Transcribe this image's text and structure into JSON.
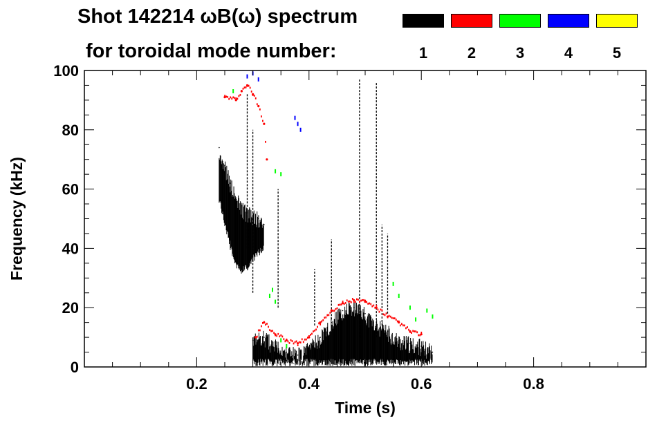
{
  "chart_data": {
    "type": "heatmap",
    "title_line1": "Shot 142214 ωB(ω) spectrum",
    "title_line2": "for toroidal mode number:",
    "xlabel": "Time (s)",
    "ylabel": "Frequency (kHz)",
    "xlim": [
      0.0,
      1.0
    ],
    "ylim": [
      0,
      100
    ],
    "x_ticks": [
      0.2,
      0.4,
      0.6,
      0.8
    ],
    "x_tick_labels": [
      "0.2",
      "0.4",
      "0.6",
      "0.8"
    ],
    "y_ticks": [
      0,
      20,
      40,
      60,
      80,
      100
    ],
    "y_tick_labels": [
      "0",
      "20",
      "40",
      "60",
      "80",
      "100"
    ],
    "legend": [
      {
        "mode": "1",
        "color": "#000000"
      },
      {
        "mode": "2",
        "color": "#ff0000"
      },
      {
        "mode": "3",
        "color": "#00ff00"
      },
      {
        "mode": "4",
        "color": "#0000ff"
      },
      {
        "mode": "5",
        "color": "#ffff00"
      }
    ],
    "series": [
      {
        "name": "n=1 low-frequency band",
        "mode": "1",
        "kind": "band",
        "points": [
          [
            0.3,
            1,
            9
          ],
          [
            0.32,
            1,
            10
          ],
          [
            0.34,
            1,
            7
          ],
          [
            0.36,
            1,
            5
          ],
          [
            0.38,
            1,
            4
          ],
          [
            0.4,
            1,
            6
          ],
          [
            0.42,
            1,
            10
          ],
          [
            0.44,
            1,
            15
          ],
          [
            0.46,
            1,
            19
          ],
          [
            0.48,
            1,
            20
          ],
          [
            0.5,
            1,
            18
          ],
          [
            0.52,
            1,
            14
          ],
          [
            0.54,
            1,
            12
          ],
          [
            0.56,
            1,
            9
          ],
          [
            0.58,
            1,
            8
          ],
          [
            0.6,
            1,
            7
          ],
          [
            0.62,
            1,
            5
          ]
        ]
      },
      {
        "name": "n=1 descending chirp band",
        "mode": "1",
        "kind": "band",
        "points": [
          [
            0.24,
            56,
            74
          ],
          [
            0.25,
            48,
            68
          ],
          [
            0.26,
            40,
            62
          ],
          [
            0.27,
            34,
            57
          ],
          [
            0.28,
            32,
            54
          ],
          [
            0.29,
            33,
            52
          ],
          [
            0.3,
            36,
            51
          ],
          [
            0.31,
            38,
            50
          ],
          [
            0.32,
            40,
            48
          ]
        ]
      },
      {
        "name": "n=1 vertical bursts",
        "mode": "1",
        "kind": "spikes",
        "points": [
          [
            0.29,
            40,
            92
          ],
          [
            0.3,
            25,
            80
          ],
          [
            0.345,
            20,
            60
          ],
          [
            0.41,
            14,
            33
          ],
          [
            0.44,
            16,
            43
          ],
          [
            0.49,
            10,
            97
          ],
          [
            0.52,
            10,
            96
          ],
          [
            0.53,
            14,
            48
          ],
          [
            0.54,
            18,
            45
          ]
        ]
      },
      {
        "name": "n=2 frequency trace",
        "mode": "2",
        "kind": "line",
        "points": [
          [
            0.305,
            10
          ],
          [
            0.32,
            15
          ],
          [
            0.34,
            11
          ],
          [
            0.36,
            9
          ],
          [
            0.38,
            8
          ],
          [
            0.4,
            10
          ],
          [
            0.42,
            15
          ],
          [
            0.44,
            19
          ],
          [
            0.46,
            21.5
          ],
          [
            0.48,
            22.5
          ],
          [
            0.5,
            22
          ],
          [
            0.52,
            20
          ],
          [
            0.54,
            17
          ],
          [
            0.56,
            15
          ],
          [
            0.58,
            12
          ],
          [
            0.6,
            11
          ]
        ]
      },
      {
        "name": "n=2 high-frequency trace",
        "mode": "2",
        "kind": "line",
        "points": [
          [
            0.25,
            91
          ],
          [
            0.27,
            90
          ],
          [
            0.28,
            93
          ],
          [
            0.29,
            95
          ],
          [
            0.3,
            92
          ],
          [
            0.31,
            88
          ],
          [
            0.32,
            82
          ],
          [
            0.325,
            70
          ]
        ]
      },
      {
        "name": "n=3 fragments",
        "mode": "3",
        "kind": "points",
        "points": [
          [
            0.265,
            93
          ],
          [
            0.33,
            24
          ],
          [
            0.335,
            26
          ],
          [
            0.34,
            22
          ],
          [
            0.35,
            9
          ],
          [
            0.36,
            7
          ],
          [
            0.55,
            28
          ],
          [
            0.56,
            24
          ],
          [
            0.58,
            20
          ],
          [
            0.59,
            16
          ],
          [
            0.61,
            19
          ],
          [
            0.62,
            17
          ],
          [
            0.34,
            66
          ],
          [
            0.35,
            65
          ]
        ]
      },
      {
        "name": "n=4 fragments",
        "mode": "4",
        "kind": "points",
        "points": [
          [
            0.29,
            98
          ],
          [
            0.3,
            99
          ],
          [
            0.31,
            97
          ],
          [
            0.375,
            84
          ],
          [
            0.38,
            82
          ],
          [
            0.385,
            80
          ]
        ]
      }
    ]
  }
}
